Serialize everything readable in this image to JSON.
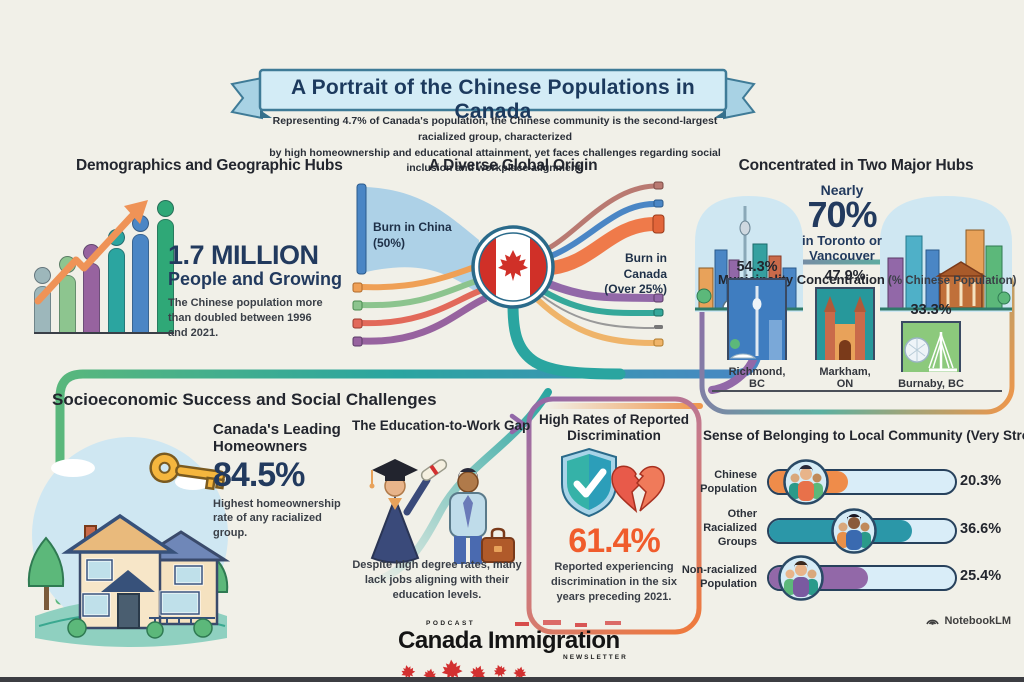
{
  "banner": {
    "title": "A Portrait of the Chinese Populations in Canada"
  },
  "subtitle": "Representing 4.7% of Canada's population, the Chinese community is the second-largest racialized group, characterized\nby high homeownership and educational attainment, yet faces challenges regarding social inclusion and workplace alignment.",
  "demographics": {
    "heading": "Demographics and Geographic Hubs",
    "stat": "1.7 MILLION",
    "stat_sub": "People and Growing",
    "caption_pre": "The Chinese population ",
    "caption_bold": "more than doubled",
    "caption_post": " between 1996 and 2021."
  },
  "origin": {
    "heading": "A Diverse Global Origin",
    "left_label": "Burn in China\n(50%)",
    "right_label": "Burn in Canada\n(Over 25%)"
  },
  "hubs": {
    "heading": "Concentrated in Two Major Hubs",
    "nearly": "Nearly",
    "stat": "70%",
    "location": "in Toronto or\nVancouver"
  },
  "municipality": {
    "heading": "Municipality Concentration",
    "heading_note": " (% Chinese Population)",
    "bars": [
      {
        "value": "54.3%",
        "label": "Richmond, BC",
        "color": "#3f7dc0"
      },
      {
        "value": "47.9%",
        "label": "Markham, ON",
        "color": "#27989b"
      },
      {
        "value": "33.3%",
        "label": "Burnaby, BC",
        "color": "#8cc97c"
      }
    ]
  },
  "socio": {
    "heading": "Socioeconomic Success and Social Challenges",
    "homeowners": {
      "title": "Canada's Leading\nHomeowners",
      "stat": "84.5%",
      "caption": "Highest homeownership\nrate of any racialized group."
    },
    "education": {
      "title": "The Education-to-Work Gap",
      "caption": "Despite high degree rates, many\nlack jobs aligning with their\neducation levels."
    },
    "discrimination": {
      "title": "High Rates of Reported\nDiscrimination",
      "stat": "61.4%",
      "caption": "Reported experiencing\ndiscrimination in the six\nyears preceding 2021."
    }
  },
  "belonging": {
    "heading": "Sense of Belonging to Local Community (Very Strong)",
    "rows": [
      {
        "label": "Chinese\nPopulation",
        "value": "20.3%",
        "pct": 20.3,
        "color": "#ef8c4a"
      },
      {
        "label": "Other\nRacialized\nGroups",
        "value": "36.6%",
        "pct": 36.6,
        "color": "#2b97a8"
      },
      {
        "label": "Non-racialized\nPopulation",
        "value": "25.4%",
        "pct": 25.4,
        "color": "#9268a8"
      }
    ]
  },
  "footer": {
    "brand_top": "PODCAST",
    "brand_main": "Canada Immigration",
    "brand_sub": "NEWSLETTER",
    "attribution": "NotebookLM"
  },
  "colors": {
    "background": "#f1f0e8",
    "banner_bg": "#d3ecf6",
    "navy": "#223a5e",
    "accent_orange": "#ef8c4a",
    "discrimination_orange": "#f05c2c",
    "teal": "#2aa5a0",
    "purple": "#9268a8",
    "blue": "#4a86c5",
    "green": "#2fa877"
  },
  "icons": {
    "growth_arrow": "zigzag-up-right-orange-arrow",
    "canada_flag": "canadian-flag-in-circle",
    "toronto_skyline": "toronto-skyline-with-cn-tower",
    "vancouver_skyline": "vancouver-skyline",
    "house": "two-story-house-with-key",
    "key": "golden-house-key",
    "graduate": "graduate-holding-diploma",
    "worker": "worker-with-briefcase",
    "shield_check": "shield-with-checkmark",
    "broken_heart": "broken-heart",
    "people_group": "group-of-three-people",
    "maple_leaf": "red-maple-leaf",
    "notebooklm": "notebooklm-logo"
  },
  "chart_data": [
    {
      "id": "population_growth",
      "type": "bar",
      "title": "Chinese population growth (stylized person-shaped bars)",
      "annotation": "1.7 MILLION people and growing — the Chinese population more than doubled between 1996 and 2021",
      "categories": [
        "",
        "",
        "",
        "",
        "",
        ""
      ],
      "values_relative": [
        0.4,
        0.5,
        0.61,
        0.74,
        0.87,
        1.0
      ],
      "colors": [
        "#9db7bb",
        "#8dc58f",
        "#97639f",
        "#2ba5a0",
        "#4b86c5",
        "#2fa877"
      ],
      "xlabel": "",
      "ylabel": ""
    },
    {
      "id": "origin_flow",
      "type": "table",
      "title": "A Diverse Global Origin (flow diagram through Canada flag)",
      "rows": [
        [
          "Burn in China",
          "50%"
        ],
        [
          "Burn in Canada",
          "Over 25%"
        ]
      ]
    },
    {
      "id": "municipality",
      "type": "bar",
      "title": "Municipality Concentration (% Chinese Population)",
      "categories": [
        "Richmond, BC",
        "Markham, ON",
        "Burnaby, BC"
      ],
      "values": [
        54.3,
        47.9,
        33.3
      ],
      "unit": "%",
      "ylim": [
        0,
        60
      ]
    },
    {
      "id": "belonging",
      "type": "bar",
      "title": "Sense of Belonging to Local Community (Very Strong)",
      "categories": [
        "Chinese Population",
        "Other Racialized Groups",
        "Non-racialized Population"
      ],
      "values": [
        20.3,
        36.6,
        25.4
      ],
      "unit": "%",
      "ylim": [
        0,
        40
      ]
    },
    {
      "id": "key_stats",
      "type": "table",
      "title": "Key statistics",
      "rows": [
        [
          "Share of Canada's population",
          "4.7%"
        ],
        [
          "Population",
          "1.7 MILLION"
        ],
        [
          "In Toronto or Vancouver",
          "Nearly 70%"
        ],
        [
          "Homeownership rate",
          "84.5%"
        ],
        [
          "Reported discrimination (six years preceding 2021)",
          "61.4%"
        ]
      ]
    }
  ]
}
